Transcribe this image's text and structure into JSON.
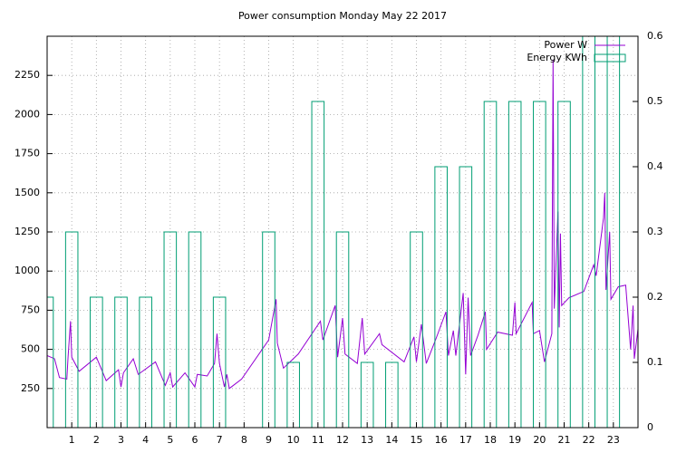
{
  "chart_data": {
    "type": "line",
    "title": "Power consumption Monday May 22 2017",
    "xlim": [
      0,
      24
    ],
    "xticks": [
      1,
      2,
      3,
      4,
      5,
      6,
      7,
      8,
      9,
      10,
      11,
      12,
      13,
      14,
      15,
      16,
      17,
      18,
      19,
      20,
      21,
      22,
      23
    ],
    "ylim": [
      0,
      2500
    ],
    "yticks": [
      250,
      500,
      750,
      1000,
      1250,
      1500,
      1750,
      2000,
      2250
    ],
    "y2lim": [
      0,
      0.6
    ],
    "y2ticks": [
      0,
      0.1,
      0.2,
      0.3,
      0.4,
      0.5,
      0.6
    ],
    "grid": true,
    "legend": "top-right",
    "series": [
      {
        "name": "Power W",
        "color": "#9400d3",
        "type": "line",
        "axis": "y",
        "x": [
          0,
          0.3,
          0.5,
          0.8,
          0.85,
          0.95,
          1.0,
          1.3,
          2.0,
          2.4,
          2.9,
          3.0,
          3.1,
          3.5,
          3.7,
          4.4,
          4.8,
          5.0,
          5.1,
          5.6,
          6.0,
          6.1,
          6.5,
          6.8,
          6.9,
          7.0,
          7.2,
          7.3,
          7.4,
          7.9,
          9.0,
          9.3,
          9.35,
          9.6,
          10.2,
          11.1,
          11.2,
          11.7,
          11.8,
          12.0,
          12.1,
          12.6,
          12.8,
          12.9,
          13.5,
          13.6,
          14.5,
          14.9,
          15.0,
          15.2,
          15.4,
          15.8,
          16.2,
          16.3,
          16.5,
          16.6,
          16.9,
          17.0,
          17.1,
          17.2,
          17.5,
          17.8,
          17.85,
          18.3,
          18.9,
          19.0,
          19.05,
          19.7,
          19.75,
          20.0,
          20.2,
          20.5,
          20.55,
          20.6,
          20.75,
          20.8,
          20.85,
          20.9,
          21.2,
          21.8,
          22.2,
          22.3,
          22.6,
          22.65,
          22.7,
          22.85,
          22.9,
          23.2,
          23.5,
          23.7,
          23.8,
          23.85,
          24.0
        ],
        "values": [
          460,
          440,
          320,
          310,
          450,
          680,
          450,
          360,
          450,
          300,
          370,
          260,
          350,
          440,
          340,
          420,
          270,
          350,
          260,
          350,
          260,
          340,
          330,
          410,
          600,
          410,
          260,
          340,
          250,
          310,
          560,
          820,
          540,
          380,
          470,
          680,
          560,
          780,
          450,
          700,
          470,
          410,
          700,
          470,
          600,
          530,
          420,
          580,
          420,
          660,
          410,
          570,
          740,
          460,
          620,
          460,
          860,
          340,
          830,
          460,
          590,
          740,
          500,
          610,
          590,
          800,
          600,
          800,
          600,
          620,
          420,
          600,
          2350,
          760,
          1380,
          640,
          1240,
          780,
          830,
          870,
          1040,
          970,
          1340,
          1500,
          880,
          1250,
          820,
          900,
          910,
          500,
          780,
          440,
          630
        ]
      },
      {
        "name": "Energy KWh",
        "color": "#009e73",
        "type": "box",
        "axis": "y2",
        "x": [
          0,
          1,
          2,
          3,
          4,
          5,
          6,
          7,
          8,
          9,
          10,
          11,
          12,
          13,
          14,
          15,
          16,
          17,
          18,
          19,
          20,
          21,
          22,
          23
        ],
        "values": [
          0.2,
          0.3,
          0.2,
          0.2,
          0.2,
          0.3,
          0.3,
          0.2,
          0,
          0.3,
          0.1,
          0.5,
          0.3,
          0.1,
          0.1,
          0.3,
          0.4,
          0.4,
          0.5,
          0.5,
          0.5,
          0.5,
          0.6,
          0.6
        ]
      }
    ]
  }
}
